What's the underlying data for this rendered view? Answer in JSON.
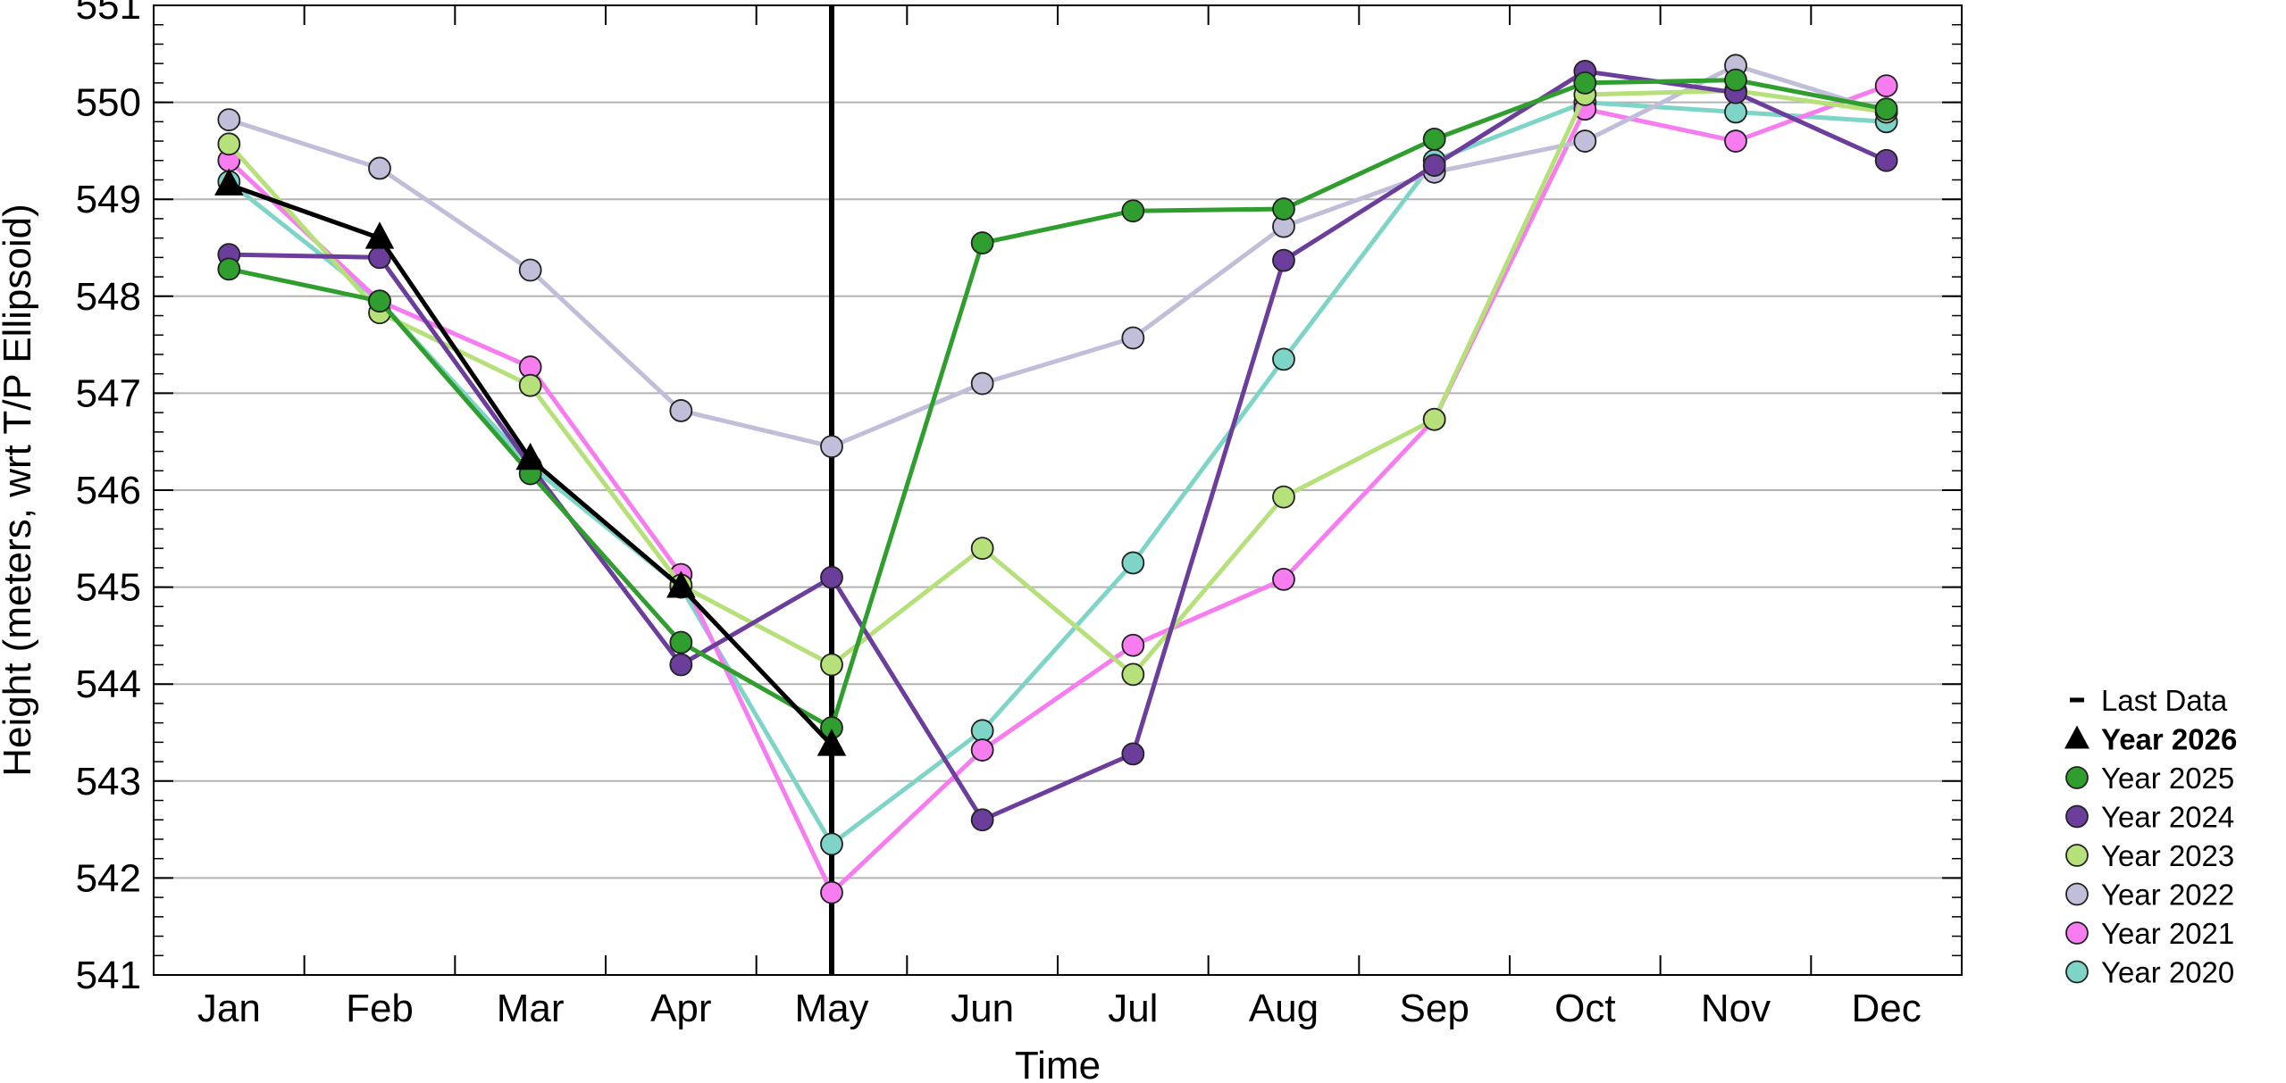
{
  "chart_data": {
    "type": "line",
    "title": "",
    "xlabel": "Time",
    "ylabel": "Height (meters, wrt T/P Ellipsoid)",
    "ylim": [
      541,
      551
    ],
    "yticks": [
      "541",
      "542",
      "543",
      "544",
      "545",
      "546",
      "547",
      "548",
      "549",
      "550",
      "551"
    ],
    "categories": [
      "Jan",
      "Feb",
      "Mar",
      "Apr",
      "May",
      "Jun",
      "Jul",
      "Aug",
      "Sep",
      "Oct",
      "Nov",
      "Dec"
    ],
    "last_data_month": "May",
    "grid": "horizontal",
    "legend_position": "right",
    "series": [
      {
        "name": "Year 2020",
        "color": "#7fd4c8",
        "marker": "circle",
        "values": [
          549.18,
          547.95,
          546.25,
          545.0,
          542.35,
          543.52,
          545.25,
          547.35,
          549.4,
          550.0,
          549.9,
          549.8
        ]
      },
      {
        "name": "Year 2021",
        "color": "#f77cf0",
        "marker": "circle",
        "values": [
          549.4,
          547.95,
          547.27,
          545.13,
          541.85,
          543.32,
          544.4,
          545.08,
          546.73,
          549.93,
          549.6,
          550.17
        ]
      },
      {
        "name": "Year 2022",
        "color": "#c0bed8",
        "marker": "circle",
        "values": [
          549.82,
          549.32,
          548.27,
          546.82,
          546.45,
          547.1,
          547.57,
          548.72,
          549.28,
          549.6,
          550.38,
          549.9
        ]
      },
      {
        "name": "Year 2023",
        "color": "#b6e07a",
        "marker": "circle",
        "values": [
          549.57,
          547.83,
          547.08,
          545.02,
          544.2,
          545.4,
          544.1,
          545.93,
          546.73,
          550.08,
          550.12,
          549.9
        ]
      },
      {
        "name": "Year 2024",
        "color": "#6a3e9a",
        "marker": "circle",
        "values": [
          548.43,
          548.4,
          546.25,
          544.2,
          545.1,
          542.6,
          543.28,
          548.37,
          549.35,
          550.32,
          550.1,
          549.4
        ]
      },
      {
        "name": "Year 2025",
        "color": "#2f9e2f",
        "marker": "circle",
        "values": [
          548.28,
          547.95,
          546.17,
          544.43,
          543.55,
          548.55,
          548.88,
          548.9,
          549.62,
          550.2,
          550.23,
          549.93
        ]
      },
      {
        "name": "Year 2026",
        "color": "#000000",
        "marker": "triangle",
        "bold": true,
        "values": [
          549.15,
          548.6,
          546.32,
          545.0,
          543.37,
          null,
          null,
          null,
          null,
          null,
          null,
          null
        ]
      }
    ],
    "legend": [
      {
        "label": "Last Data",
        "symbol": "dash",
        "color": "#000000"
      },
      {
        "label": "Year 2026",
        "symbol": "triangle",
        "color": "#000000",
        "bold": true
      },
      {
        "label": "Year 2025",
        "symbol": "circle",
        "color": "#2f9e2f"
      },
      {
        "label": "Year 2024",
        "symbol": "circle",
        "color": "#6a3e9a"
      },
      {
        "label": "Year 2023",
        "symbol": "circle",
        "color": "#b6e07a"
      },
      {
        "label": "Year 2022",
        "symbol": "circle",
        "color": "#c0bed8"
      },
      {
        "label": "Year 2021",
        "symbol": "circle",
        "color": "#f77cf0"
      },
      {
        "label": "Year 2020",
        "symbol": "circle",
        "color": "#7fd4c8"
      }
    ]
  }
}
